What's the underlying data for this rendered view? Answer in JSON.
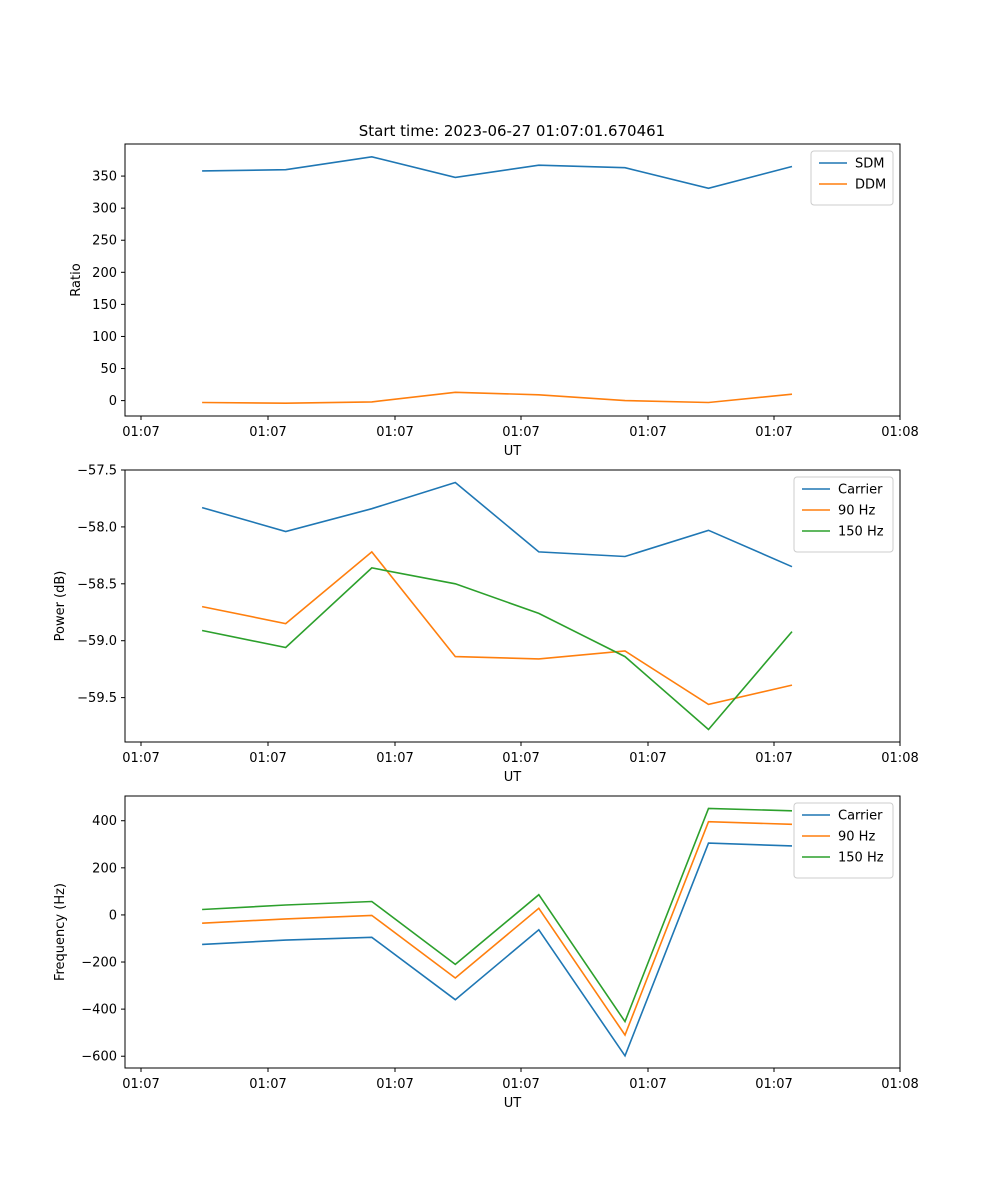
{
  "figure": {
    "title": "Start time: 2023-06-27 01:07:01.670461"
  },
  "chart_data": [
    {
      "type": "line",
      "title": "Start time: 2023-06-27 01:07:01.670461",
      "xlabel": "UT",
      "ylabel": "Ratio",
      "x_tick_labels": [
        "01:07",
        "01:07",
        "01:07",
        "01:07",
        "01:07",
        "01:07",
        "01:07"
      ],
      "x_last_tick_label": "01:08",
      "x": [
        0.47,
        1.12,
        1.79,
        2.44,
        3.09,
        3.76,
        4.41,
        5.06
      ],
      "xlim": [
        -0.13,
        5.9
      ],
      "ylim": [
        -24,
        400
      ],
      "yticks": [
        0,
        50,
        100,
        150,
        200,
        250,
        300,
        350
      ],
      "legend": "upper right",
      "series": [
        {
          "name": "SDM",
          "color": "#1f77b4",
          "values": [
            358,
            360,
            380,
            348,
            367,
            363,
            331,
            365
          ]
        },
        {
          "name": "DDM",
          "color": "#ff7f0e",
          "values": [
            -3,
            -4,
            -2,
            13,
            9,
            0,
            -3,
            10
          ]
        }
      ]
    },
    {
      "type": "line",
      "title": "",
      "xlabel": "UT",
      "ylabel": "Power (dB)",
      "x_tick_labels": [
        "01:07",
        "01:07",
        "01:07",
        "01:07",
        "01:07",
        "01:07",
        "01:07"
      ],
      "x_last_tick_label": "01:08",
      "x": [
        0.47,
        1.12,
        1.79,
        2.44,
        3.09,
        3.76,
        4.41,
        5.06
      ],
      "xlim": [
        -0.13,
        5.9
      ],
      "ylim": [
        -59.89,
        -57.5
      ],
      "yticks": [
        -57.5,
        -58.0,
        -58.5,
        -59.0,
        -59.5
      ],
      "ytick_labels": [
        "−57.5",
        "−58.0",
        "−58.5",
        "−59.0",
        "−59.5"
      ],
      "legend": "upper right",
      "series": [
        {
          "name": "Carrier",
          "color": "#1f77b4",
          "values": [
            -57.83,
            -58.04,
            -57.84,
            -57.61,
            -58.22,
            -58.26,
            -58.03,
            -58.35
          ]
        },
        {
          "name": "90 Hz",
          "color": "#ff7f0e",
          "values": [
            -58.7,
            -58.85,
            -58.22,
            -59.14,
            -59.16,
            -59.09,
            -59.56,
            -59.39
          ]
        },
        {
          "name": "150 Hz",
          "color": "#2ca02c",
          "values": [
            -58.91,
            -59.06,
            -58.36,
            -58.5,
            -58.76,
            -59.14,
            -59.78,
            -58.92
          ]
        }
      ]
    },
    {
      "type": "line",
      "title": "",
      "xlabel": "UT",
      "ylabel": "Frequency (Hz)",
      "x_tick_labels": [
        "01:07",
        "01:07",
        "01:07",
        "01:07",
        "01:07",
        "01:07",
        "01:07"
      ],
      "x_last_tick_label": "01:08",
      "x": [
        0.47,
        1.12,
        1.79,
        2.44,
        3.09,
        3.76,
        4.41,
        5.06
      ],
      "xlim": [
        -0.13,
        5.9
      ],
      "ylim": [
        -650,
        505
      ],
      "yticks": [
        400,
        200,
        0,
        -200,
        -400,
        -600
      ],
      "ytick_labels": [
        "400",
        "200",
        "0",
        "−200",
        "−400",
        "−600"
      ],
      "legend": "upper right",
      "series": [
        {
          "name": "Carrier",
          "color": "#1f77b4",
          "values": [
            -125,
            -107,
            -95,
            -360,
            -63,
            -598,
            305,
            293
          ]
        },
        {
          "name": "90 Hz",
          "color": "#ff7f0e",
          "values": [
            -35,
            -17,
            -2,
            -268,
            28,
            -510,
            396,
            385
          ]
        },
        {
          "name": "150 Hz",
          "color": "#2ca02c",
          "values": [
            23,
            42,
            57,
            -210,
            86,
            -453,
            452,
            442
          ]
        }
      ]
    }
  ]
}
